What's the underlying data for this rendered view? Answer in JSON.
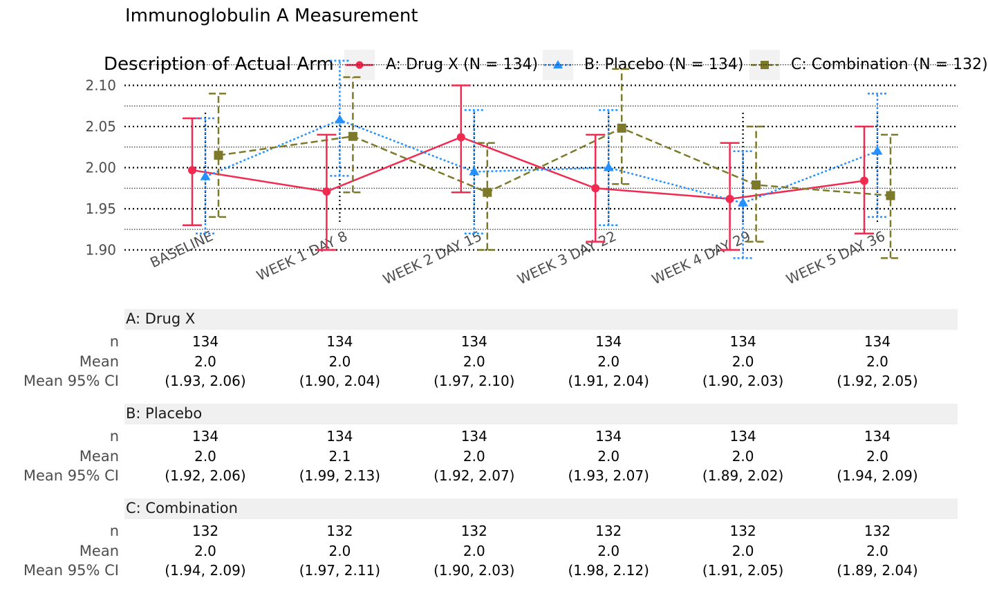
{
  "title": "Immunoglobulin A Measurement",
  "legend": {
    "title": "Description of Actual Arm",
    "items": [
      {
        "label": "A: Drug X (N = 134)",
        "color": "#f12a4f",
        "shape": "circle",
        "linestyle": "solid"
      },
      {
        "label": "B: Placebo (N = 134)",
        "color": "#2491ff",
        "shape": "triangle",
        "linestyle": "dotted"
      },
      {
        "label": "C: Combination (N = 132)",
        "color": "#7c7a2a",
        "shape": "square",
        "linestyle": "dashed"
      }
    ]
  },
  "chart_data": {
    "type": "line",
    "title": "Immunoglobulin A Measurement",
    "xlabel": "",
    "ylabel": "",
    "categories": [
      "BASELINE",
      "WEEK 1 DAY 8",
      "WEEK 2 DAY 15",
      "WEEK 3 DAY 22",
      "WEEK 4 DAY 29",
      "WEEK 5 DAY 36"
    ],
    "yticks": [
      "1.90",
      "1.95",
      "2.00",
      "2.05",
      "2.10"
    ],
    "ylim": [
      1.88,
      2.13
    ],
    "grid": true,
    "legend_position": "top",
    "error_bars": "Mean 95% CI",
    "series": [
      {
        "name": "A: Drug X (N = 134)",
        "color": "#f12a4f",
        "marker": "circle",
        "linestyle": "solid",
        "values": [
          1.997,
          1.971,
          2.037,
          1.975,
          1.962,
          1.984
        ],
        "lower": [
          1.93,
          1.9,
          1.97,
          1.91,
          1.9,
          1.92
        ],
        "upper": [
          2.06,
          2.04,
          2.1,
          2.04,
          2.03,
          2.05
        ]
      },
      {
        "name": "B: Placebo (N = 134)",
        "color": "#2491ff",
        "marker": "triangle",
        "linestyle": "dotted",
        "values": [
          1.989,
          2.058,
          1.995,
          2.0,
          1.957,
          2.02
        ],
        "lower": [
          1.92,
          1.99,
          1.92,
          1.93,
          1.89,
          1.94
        ],
        "upper": [
          2.06,
          2.13,
          2.07,
          2.07,
          2.02,
          2.09
        ]
      },
      {
        "name": "C: Combination (N = 132)",
        "color": "#7c7a2a",
        "marker": "square",
        "linestyle": "dashed",
        "values": [
          2.015,
          2.038,
          1.97,
          2.048,
          1.979,
          1.966
        ],
        "lower": [
          1.94,
          1.97,
          1.9,
          1.98,
          1.91,
          1.89
        ],
        "upper": [
          2.09,
          2.11,
          2.03,
          2.12,
          2.05,
          2.04
        ]
      }
    ]
  },
  "table": {
    "row_labels": [
      "n",
      "Mean",
      "Mean 95% CI"
    ],
    "groups": [
      {
        "name": "A: Drug X",
        "n": [
          "134",
          "134",
          "134",
          "134",
          "134",
          "134"
        ],
        "mean": [
          "2.0",
          "2.0",
          "2.0",
          "2.0",
          "2.0",
          "2.0"
        ],
        "ci": [
          "(1.93, 2.06)",
          "(1.90, 2.04)",
          "(1.97, 2.10)",
          "(1.91, 2.04)",
          "(1.90, 2.03)",
          "(1.92, 2.05)"
        ]
      },
      {
        "name": "B: Placebo",
        "n": [
          "134",
          "134",
          "134",
          "134",
          "134",
          "134"
        ],
        "mean": [
          "2.0",
          "2.1",
          "2.0",
          "2.0",
          "2.0",
          "2.0"
        ],
        "ci": [
          "(1.92, 2.06)",
          "(1.99, 2.13)",
          "(1.92, 2.07)",
          "(1.93, 2.07)",
          "(1.89, 2.02)",
          "(1.94, 2.09)"
        ]
      },
      {
        "name": "C: Combination",
        "n": [
          "132",
          "132",
          "132",
          "132",
          "132",
          "132"
        ],
        "mean": [
          "2.0",
          "2.0",
          "2.0",
          "2.0",
          "2.0",
          "2.0"
        ],
        "ci": [
          "(1.94, 2.09)",
          "(1.97, 2.11)",
          "(1.90, 2.03)",
          "(1.98, 2.12)",
          "(1.91, 2.05)",
          "(1.89, 2.04)"
        ]
      }
    ]
  }
}
